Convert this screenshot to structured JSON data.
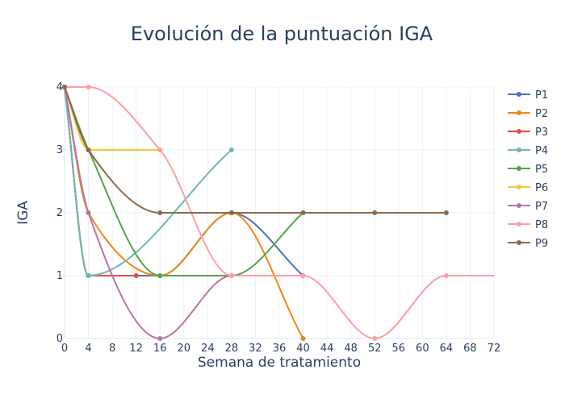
{
  "chart_data": {
    "type": "line",
    "title": "Evolución de la puntuación IGA",
    "xlabel": "Semana de tratamiento",
    "ylabel": "IGA",
    "xlim": [
      0,
      72
    ],
    "ylim": [
      0,
      4
    ],
    "xticks": [
      0,
      4,
      8,
      12,
      16,
      20,
      24,
      28,
      32,
      36,
      40,
      44,
      48,
      52,
      56,
      60,
      64,
      68,
      72
    ],
    "yticks": [
      0,
      1,
      2,
      3,
      4
    ],
    "grid": true,
    "legend_position": "right",
    "series": [
      {
        "name": "P1",
        "color": "#4c72b0",
        "x": [
          0,
          4,
          16,
          28,
          40
        ],
        "y": [
          4,
          1,
          1,
          2,
          1
        ]
      },
      {
        "name": "P2",
        "color": "#f28518",
        "x": [
          0,
          4,
          16,
          28,
          40
        ],
        "y": [
          4,
          2,
          1,
          2,
          0
        ]
      },
      {
        "name": "P3",
        "color": "#e04b4b",
        "x": [
          0,
          4,
          12
        ],
        "y": [
          4,
          1,
          1
        ]
      },
      {
        "name": "P4",
        "color": "#6fb7b0",
        "x": [
          0,
          4,
          28
        ],
        "y": [
          4,
          1,
          3
        ]
      },
      {
        "name": "P5",
        "color": "#54a24b",
        "x": [
          0,
          4,
          16,
          28,
          40
        ],
        "y": [
          4,
          3,
          1,
          1,
          2
        ]
      },
      {
        "name": "P6",
        "color": "#eeca3b",
        "x": [
          0,
          4,
          16
        ],
        "y": [
          4,
          3,
          3
        ]
      },
      {
        "name": "P7",
        "color": "#b279a2",
        "x": [
          0,
          4,
          16,
          28,
          40
        ],
        "y": [
          4,
          2,
          0,
          1,
          1
        ]
      },
      {
        "name": "P8",
        "color": "#ff9da6",
        "x": [
          0,
          4,
          16,
          28,
          40,
          52,
          64,
          72
        ],
        "y": [
          4,
          4,
          3,
          1,
          1,
          0,
          1,
          1
        ],
        "markers": [
          true,
          true,
          true,
          true,
          true,
          true,
          true,
          false
        ]
      },
      {
        "name": "P9",
        "color": "#8c6a4f",
        "x": [
          0,
          4,
          16,
          28,
          40,
          52,
          64
        ],
        "y": [
          4,
          3,
          2,
          2,
          2,
          2,
          2
        ]
      }
    ]
  }
}
